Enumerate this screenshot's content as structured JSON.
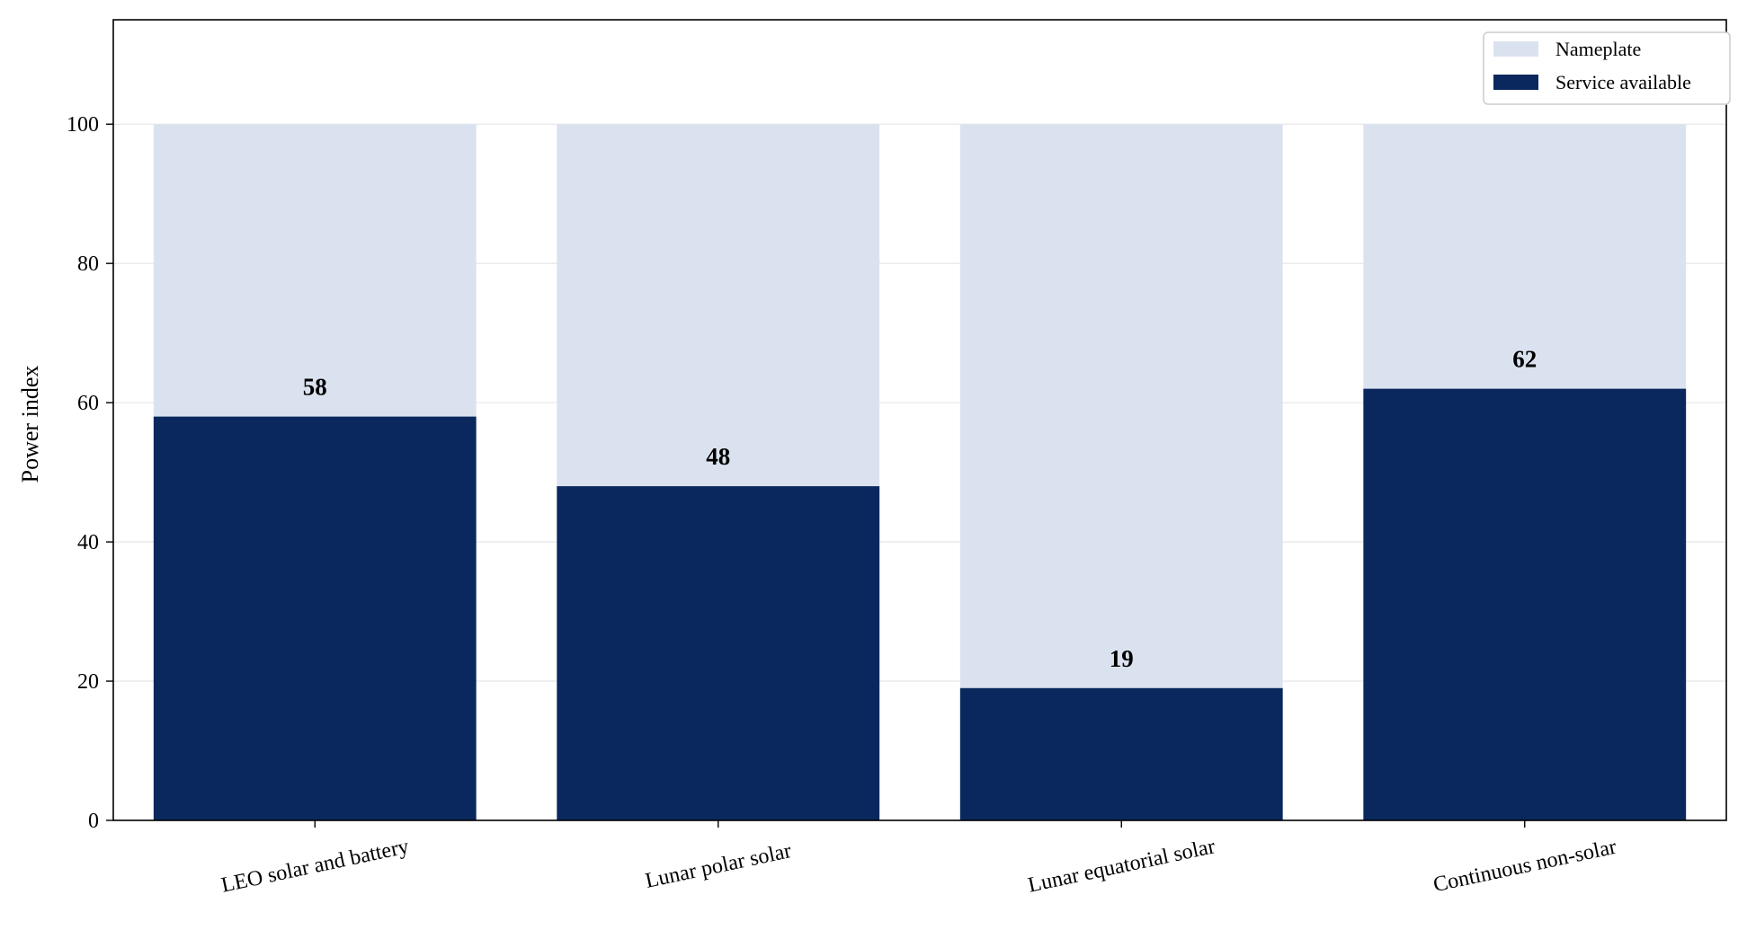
{
  "chart_data": {
    "type": "bar",
    "title": "",
    "xlabel": "",
    "ylabel": "Power index",
    "ylim": [
      0,
      115
    ],
    "yticks": [
      0,
      20,
      40,
      60,
      80,
      100
    ],
    "grid": "y",
    "legend_position": "top-right",
    "categories": [
      "LEO solar and battery",
      "Lunar polar solar",
      "Lunar equatorial solar",
      "Continuous non-solar"
    ],
    "series": [
      {
        "name": "Nameplate",
        "values": [
          100,
          100,
          100,
          100
        ],
        "color": "#dbe2ef"
      },
      {
        "name": "Service available",
        "values": [
          58,
          48,
          19,
          62
        ],
        "color": "#0a285e"
      }
    ],
    "data_labels": [
      "58",
      "48",
      "19",
      "62"
    ]
  }
}
